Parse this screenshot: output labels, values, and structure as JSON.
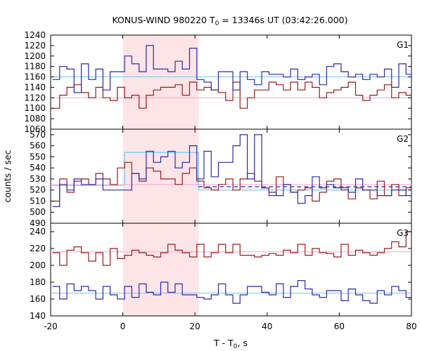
{
  "chart_data": {
    "type": "line",
    "title_main": "KONUS-WIND 980220 T",
    "title_sub": "0",
    "title_rest": " = 13346s UT (03:42:26.000)",
    "ylabel": "counts / sec",
    "xlabel_main": "T - T",
    "xlabel_sub": "0",
    "xlabel_rest": ", s",
    "xlim": [
      -20,
      80
    ],
    "xticks": [
      -20,
      0,
      20,
      40,
      60,
      80
    ],
    "shade": [
      0,
      21
    ],
    "colors": {
      "red": "#9b1b1b",
      "blue": "#2a2aa8",
      "cyan": "#6fc8f0",
      "pink": "#f0a6d8",
      "shade": "#fde4e7"
    },
    "bin_start": -19.5,
    "bin_width": 2.0,
    "panels": [
      {
        "label": "G1",
        "ylim": [
          1060,
          1240
        ],
        "yticks": [
          1060,
          1080,
          1100,
          1120,
          1140,
          1160,
          1180,
          1200,
          1220,
          1240
        ],
        "series": [
          {
            "color": "blue",
            "values": [
              1155,
              1175,
              1185,
              1135,
              1170,
              1160,
              1175,
              1160,
              1190,
              1150,
              1200,
              1175,
              1180,
              1205,
              1175,
              1220,
              1175,
              1170,
              1172,
              1215,
              1160,
              1150,
              1130,
              1170,
              1165,
              1135,
              1170,
              1170,
              1145,
              1170,
              1165,
              1160,
              1180,
              1160,
              1150,
              1165,
              1150,
              1150,
              1180,
              1180,
              1165,
              1170,
              1160,
              1150,
              1170,
              1155,
              1170,
              1140,
              1185,
              1165,
              1185
            ]
          },
          {
            "color": "red",
            "values": [
              1100,
              1120,
              1140,
              1155,
              1130,
              1130,
              1140,
              1120,
              1125,
              1140,
              1105,
              1115,
              1120,
              1150,
              1150,
              1130,
              1150,
              1155,
              1120,
              1150,
              1135,
              1140,
              1130,
              1135,
              1125,
              1150,
              1115,
              1145,
              1135,
              1135,
              1155,
              1145,
              1135,
              1150,
              1135,
              1155,
              1140,
              1120,
              1130,
              1135,
              1140,
              1150,
              1125,
              1115,
              1125,
              1135,
              1145,
              1120,
              1130,
              1125,
              1125
            ]
          },
          {
            "color": "cyan",
            "style": "flat",
            "value": 1160,
            "from": -20,
            "to": 80
          },
          {
            "color": "pink",
            "style": "flat",
            "value": 1120,
            "from": -20,
            "to": 80
          }
        ],
        "blue_override": [
          1155,
          1180,
          1175,
          1130,
          1185,
          1155,
          1175,
          1135,
          1170,
          1170,
          1200,
          1185,
          1170,
          1220,
          1175,
          1175,
          1170,
          1190,
          1175,
          1215,
          1155,
          1150,
          1135,
          1170,
          1170,
          1135,
          1170,
          1155,
          1145,
          1170,
          1165,
          1165,
          1160,
          1175,
          1155,
          1160,
          1165,
          1145,
          1180,
          1185,
          1170,
          1160,
          1165,
          1155,
          1165,
          1160,
          1175,
          1140,
          1185,
          1165,
          1185
        ],
        "red_override": [
          1100,
          1125,
          1140,
          1145,
          1130,
          1120,
          1140,
          1120,
          1115,
          1140,
          1120,
          1125,
          1100,
          1125,
          1135,
          1140,
          1140,
          1145,
          1125,
          1150,
          1135,
          1140,
          1135,
          1130,
          1115,
          1150,
          1100,
          1120,
          1135,
          1135,
          1150,
          1145,
          1135,
          1150,
          1135,
          1150,
          1140,
          1120,
          1130,
          1135,
          1140,
          1150,
          1125,
          1115,
          1125,
          1135,
          1145,
          1120,
          1130,
          1125,
          1125
        ]
      },
      {
        "label": "G2",
        "ylim": [
          490,
          575
        ],
        "yticks": [
          490,
          500,
          510,
          520,
          530,
          540,
          550,
          560,
          570
        ],
        "series": [
          {
            "color": "blue",
            "values": [
              505,
              530,
              520,
              533,
              527,
              520,
              532,
              525,
              520,
              530,
              537,
              545,
              555,
              545,
              530,
              548,
              545,
              540,
              538,
              560,
              545,
              555,
              530,
              545,
              530,
              570,
              560,
              525,
              560,
              525,
              520,
              515,
              530,
              520,
              525,
              520,
              510,
              520,
              530,
              525,
              525,
              520,
              530,
              520,
              525,
              525,
              515,
              525,
              520,
              518,
              530
            ]
          },
          {
            "color": "red",
            "values": [
              510,
              523,
              525,
              530,
              530,
              530,
              535,
              530,
              525,
              540,
              545,
              530,
              530,
              535,
              530,
              530,
              530,
              530,
              540,
              545,
              530,
              525,
              520,
              520,
              525,
              515,
              530,
              525,
              535,
              530,
              525,
              530,
              520,
              510,
              520,
              525,
              515,
              510,
              520,
              515,
              525,
              520,
              530,
              520,
              515,
              520,
              510,
              520,
              515,
              510,
              525
            ]
          },
          {
            "color": "cyan",
            "style": "flat",
            "value": 520,
            "from": -20,
            "to": 80
          },
          {
            "color": "pink",
            "style": "flat",
            "value": 525,
            "from": -20,
            "to": 80
          }
        ],
        "blue_override": [
          505,
          525,
          520,
          530,
          525,
          525,
          530,
          520,
          520,
          520,
          520,
          535,
          530,
          555,
          545,
          550,
          555,
          540,
          545,
          560,
          530,
          555,
          532,
          545,
          545,
          560,
          570,
          530,
          570,
          522,
          518,
          515,
          525,
          518,
          508,
          515,
          532,
          522,
          525,
          522,
          522,
          518,
          530,
          520,
          520,
          515,
          515,
          520,
          520,
          515,
          530
        ],
        "red_override": [
          510,
          530,
          518,
          528,
          530,
          525,
          535,
          530,
          525,
          540,
          545,
          535,
          528,
          540,
          537,
          530,
          530,
          525,
          535,
          540,
          528,
          522,
          520,
          525,
          530,
          520,
          530,
          535,
          528,
          522,
          515,
          532,
          525,
          518,
          520,
          522,
          510,
          518,
          528,
          530,
          520,
          512,
          522,
          520,
          512,
          528,
          515,
          525,
          515,
          522,
          525
        ],
        "dashed": {
          "color": "blue",
          "value": 523,
          "from": 21,
          "to": 80
        },
        "pre_cyan": {
          "value": 524,
          "from": -20,
          "to": 0
        },
        "burst_cyan": {
          "value": 554,
          "from": 0.5,
          "to": 21
        },
        "post_cyan": {
          "value": 520,
          "from": 21,
          "to": 80
        }
      },
      {
        "label": "G3",
        "ylim": [
          140,
          250
        ],
        "yticks": [
          140,
          160,
          180,
          200,
          220,
          240
        ],
        "series": [
          {
            "color": "red",
            "values": [
              215,
              205,
              200,
              220,
              215,
              205,
              215,
              220,
              220,
              210,
              215,
              215,
              205,
              215,
              210,
              215,
              225,
              215,
              220,
              210,
              225,
              220,
              210,
              210,
              220,
              220,
              215,
              215,
              210,
              210,
              215,
              215,
              220,
              225,
              215,
              210,
              220,
              215,
              215,
              210,
              220,
              215,
              220,
              215,
              215,
              215,
              220,
              230,
              225,
              240,
              200
            ]
          },
          {
            "color": "blue",
            "values": [
              175,
              160,
              175,
              170,
              170,
              170,
              165,
              175,
              175,
              160,
              175,
              170,
              175,
              175,
              160,
              180,
              170,
              180,
              170,
              165,
              165,
              160,
              165,
              175,
              165,
              170,
              165,
              175,
              170,
              165,
              165,
              170,
              165,
              175,
              180,
              170,
              160,
              165,
              165,
              170,
              160,
              175,
              165,
              170,
              155,
              170,
              165,
              175,
              170,
              165,
              180
            ]
          },
          {
            "color": "cyan",
            "style": "flat",
            "value": 167,
            "from": -20,
            "to": 80
          },
          {
            "color": "pink",
            "style": "flat",
            "value": 216,
            "from": -20,
            "to": 80
          }
        ],
        "red_override": [
          215,
          200,
          218,
          222,
          215,
          205,
          215,
          200,
          220,
          208,
          212,
          218,
          215,
          212,
          210,
          215,
          225,
          218,
          215,
          210,
          225,
          210,
          215,
          225,
          215,
          225,
          212,
          212,
          210,
          212,
          214,
          212,
          218,
          215,
          225,
          212,
          220,
          215,
          214,
          210,
          225,
          212,
          218,
          215,
          212,
          215,
          220,
          228,
          222,
          240,
          210
        ],
        "blue_override": [
          175,
          160,
          178,
          170,
          175,
          170,
          160,
          175,
          165,
          160,
          175,
          162,
          178,
          168,
          165,
          180,
          168,
          178,
          165,
          165,
          162,
          160,
          165,
          178,
          165,
          155,
          165,
          175,
          175,
          168,
          165,
          178,
          162,
          175,
          182,
          172,
          165,
          162,
          170,
          170,
          158,
          172,
          165,
          158,
          155,
          170,
          165,
          175,
          170,
          162,
          182
        ]
      }
    ]
  }
}
